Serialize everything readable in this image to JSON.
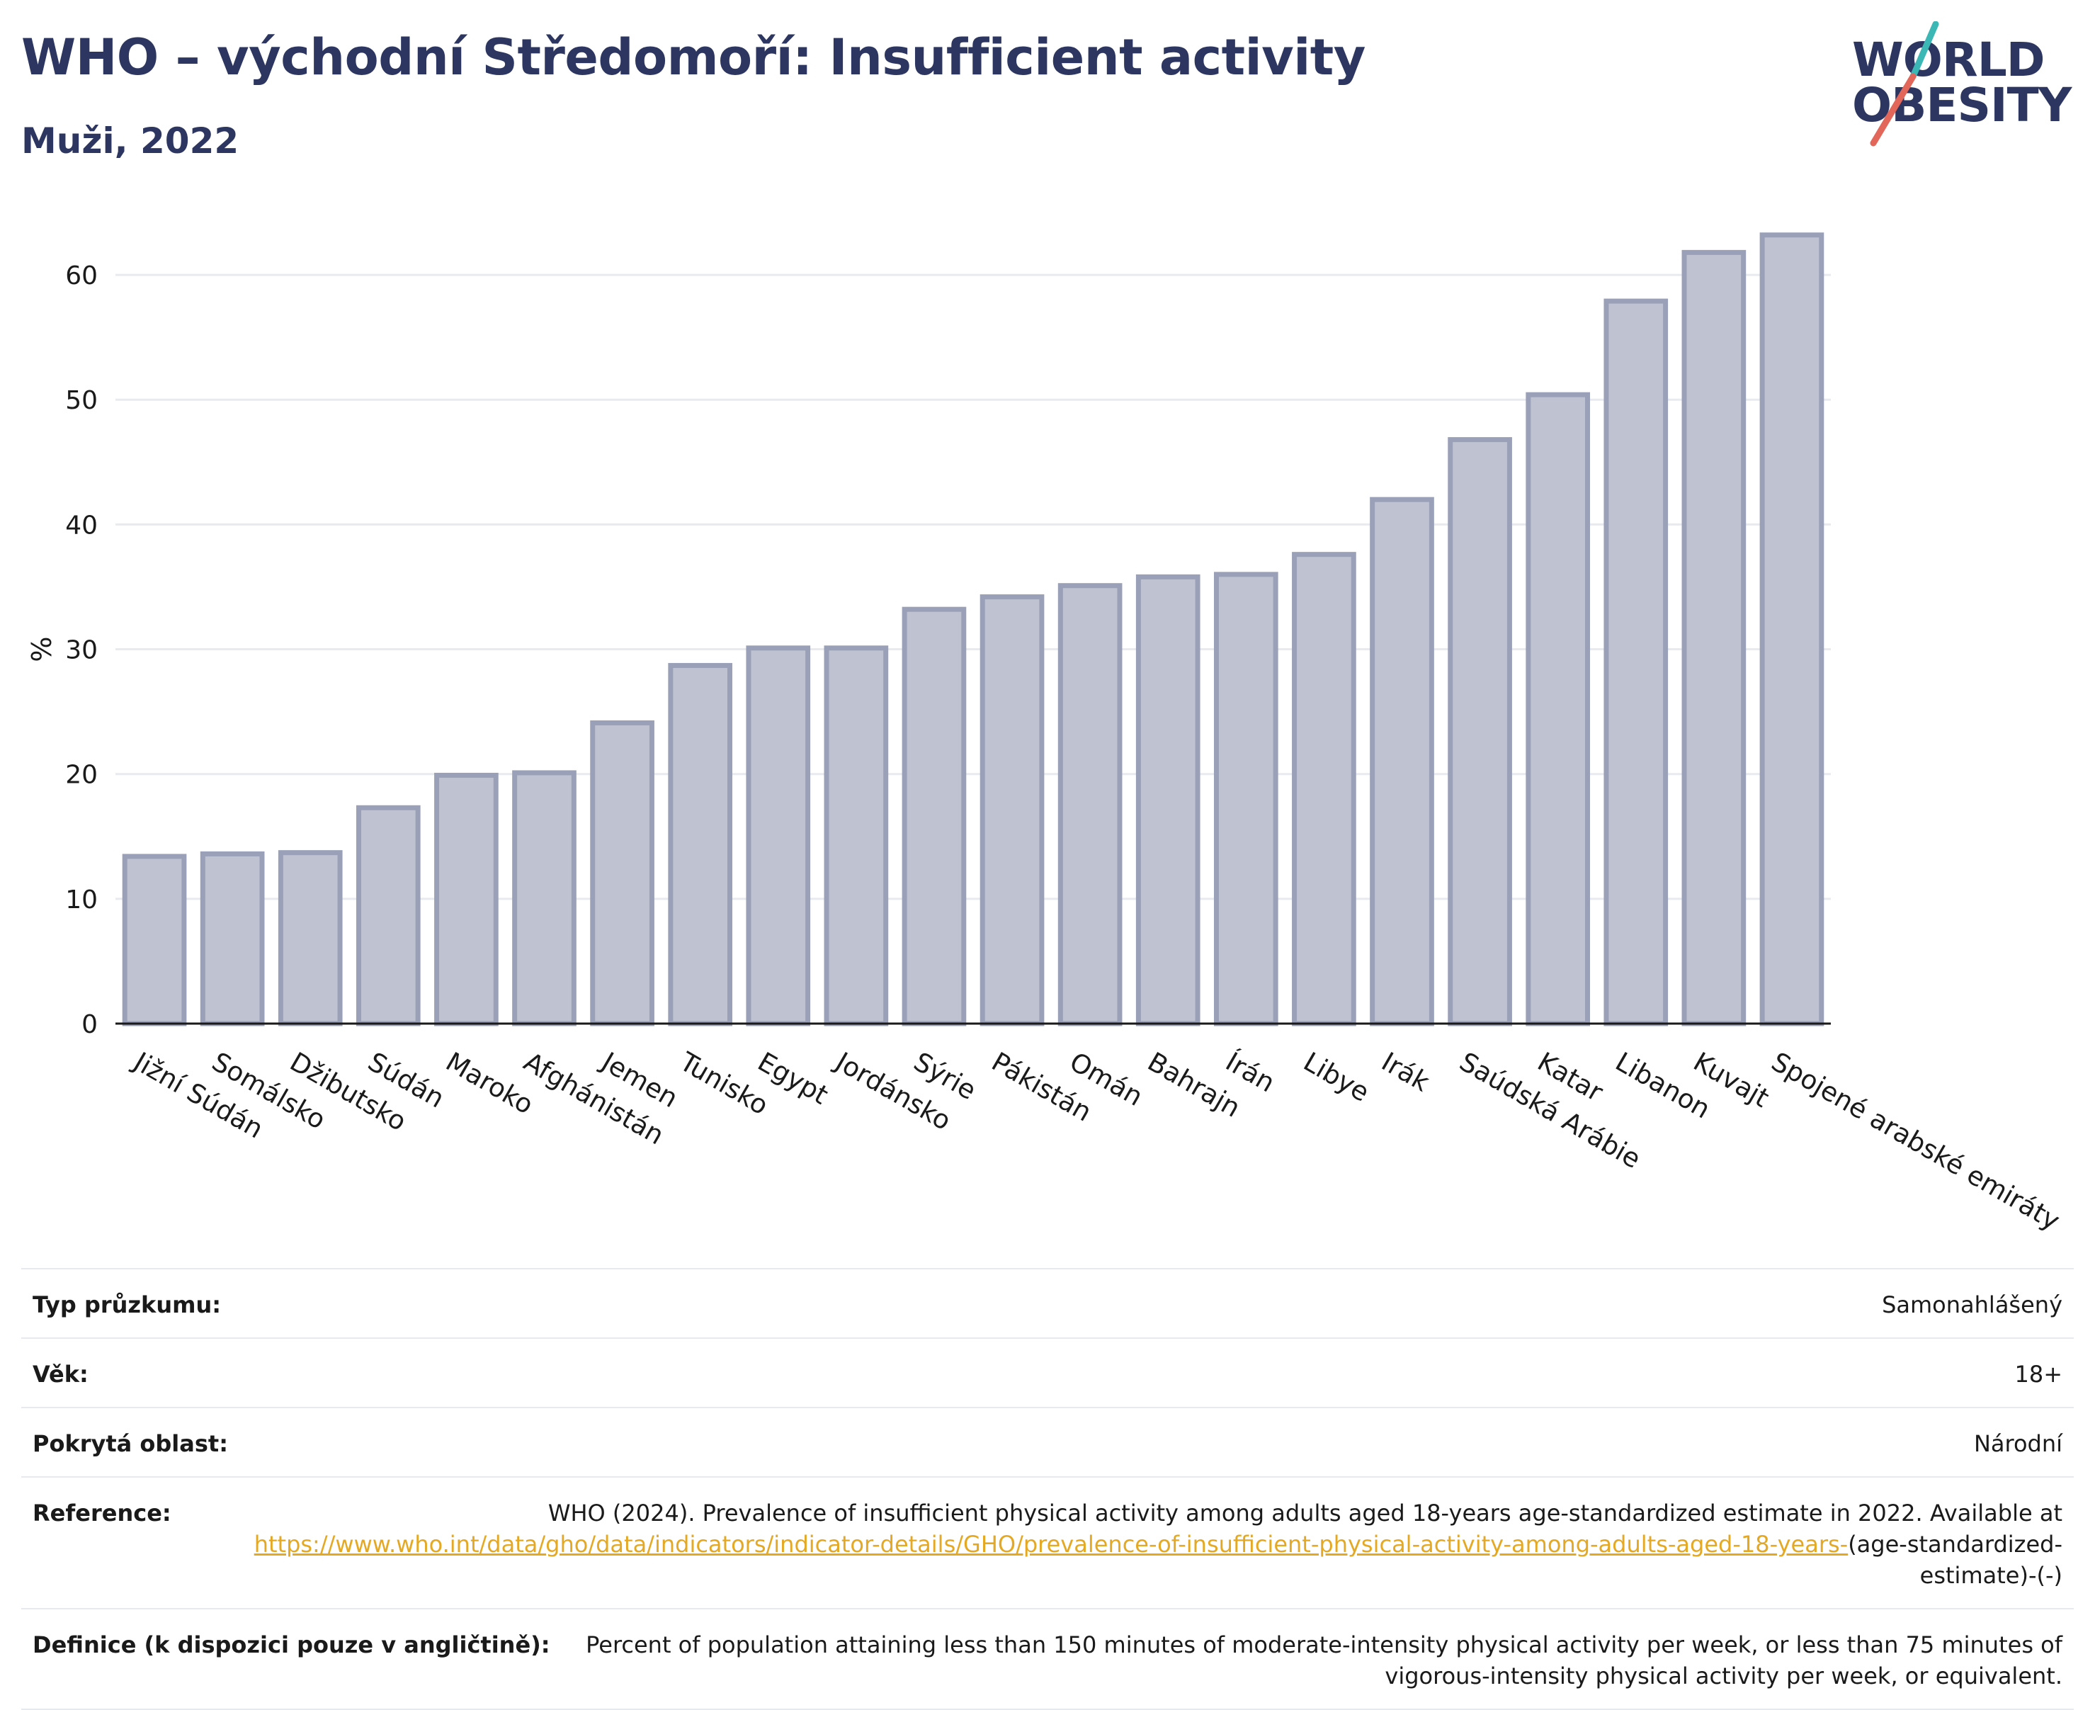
{
  "header": {
    "title": "WHO – východní Středomoří: Insufficient activity",
    "subtitle": "Muži, 2022"
  },
  "logo": {
    "line1": "WORLD",
    "line2": "OBESITY",
    "colors": {
      "text": "#2c3660",
      "slash_top": "#3bb7b5",
      "slash_bottom": "#e2665a"
    }
  },
  "chart_data": {
    "type": "bar",
    "ylabel": "%",
    "ylim": [
      0,
      65
    ],
    "yticks": [
      0,
      10,
      20,
      30,
      40,
      50,
      60
    ],
    "grid": true,
    "bar_fill": "#bfc3d1",
    "bar_stroke": "#9aa0b8",
    "categories": [
      "Jižní Súdán",
      "Somálsko",
      "Džibutsko",
      "Súdán",
      "Maroko",
      "Afghánistán",
      "Jemen",
      "Tunisko",
      "Egypt",
      "Jordánsko",
      "Sýrie",
      "Pákistán",
      "Omán",
      "Bahrajn",
      "Írán",
      "Libye",
      "Irák",
      "Saúdská Arábie",
      "Katar",
      "Libanon",
      "Kuvajt",
      "Spojené arabské emiráty"
    ],
    "values": [
      13.4,
      13.6,
      13.7,
      17.3,
      19.9,
      20.1,
      24.1,
      28.7,
      30.1,
      30.1,
      33.2,
      34.2,
      35.1,
      35.8,
      36.0,
      37.6,
      42.0,
      46.8,
      50.4,
      57.9,
      61.8,
      63.2
    ]
  },
  "info": {
    "survey_type": {
      "label": "Typ průzkumu:",
      "value": "Samonahlášený"
    },
    "age": {
      "label": "Věk:",
      "value": "18+"
    },
    "area": {
      "label": "Pokrytá oblast:",
      "value": "Národní"
    },
    "reference": {
      "label": "Reference:",
      "text": "WHO (2024). Prevalence of insufficient physical activity among adults aged 18-years age-standardized estimate in 2022. Available at",
      "link": "https://www.who.int/data/gho/data/indicators/indicator-details/GHO/prevalence-of-insufficient-physical-activity-among-adults-aged-18-years-",
      "suffix": "(age-standardized-estimate)-(-)"
    },
    "definition": {
      "label": "Definice (k dispozici pouze v angličtině):",
      "value": "Percent of population attaining less than 150 minutes of moderate-intensity physical activity per week, or less than 75 minutes of vigorous-intensity physical activity per week, or equivalent."
    }
  }
}
